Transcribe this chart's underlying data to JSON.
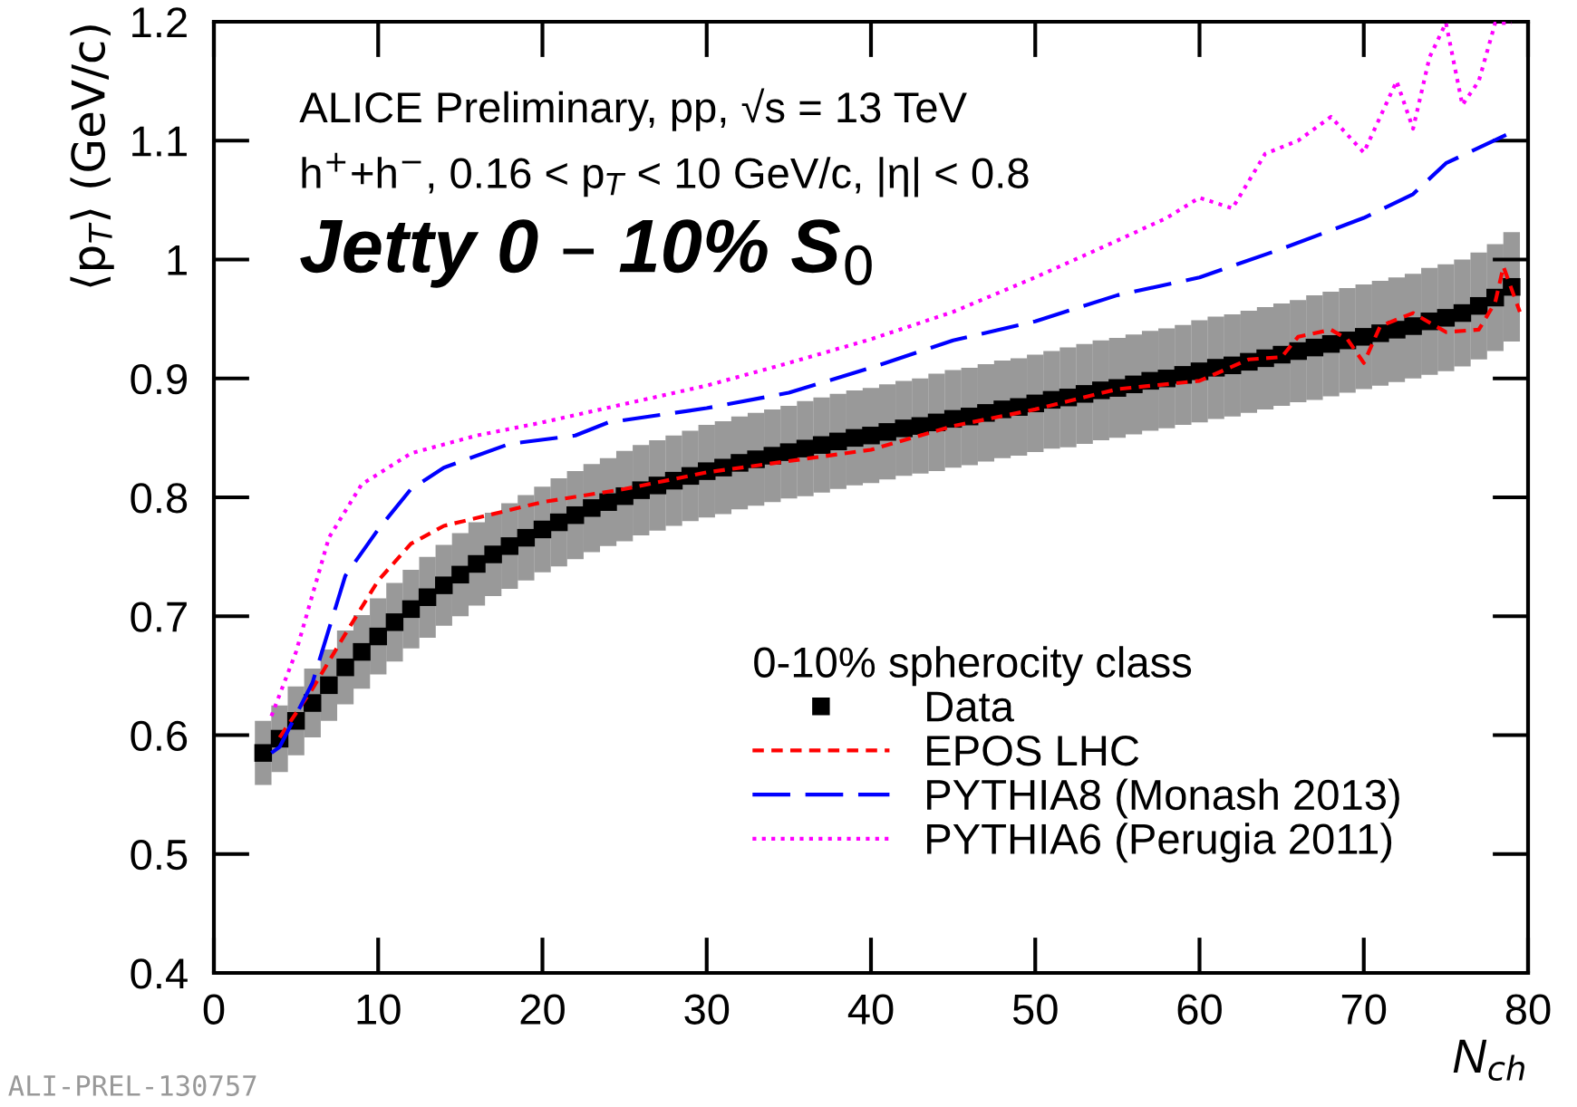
{
  "chart_data": {
    "type": "line",
    "xlabel": "N$_{ch}$",
    "ylabel": "⟨p$_{T}$⟩ (GeV/c)",
    "legend_title": "0-10% spherocity class",
    "annotations": [
      "ALICE Preliminary, pp, √s = 13 TeV",
      "h$^{+}$+h$^{−}$, 0.16 < p$_{T}$ < 10 GeV/c, |η| < 0.8",
      "Jetty 0 – 10% S$_{0}$",
      "ALI-PREL-130757"
    ],
    "xlim": [
      0,
      80
    ],
    "ylim": [
      0.4,
      1.2
    ],
    "xticks": [
      0,
      10,
      20,
      30,
      40,
      50,
      60,
      70,
      80
    ],
    "yticks": [
      0.4,
      0.5,
      0.6,
      0.7,
      0.8,
      0.9,
      1,
      1.1,
      1.2
    ],
    "grid": false,
    "legend": "bottom right",
    "series": [
      {
        "name": "Data",
        "type": "scatter",
        "marker": "square",
        "color": "#000000",
        "x": [
          3,
          4,
          5,
          6,
          7,
          8,
          9,
          10,
          11,
          12,
          13,
          14,
          15,
          16,
          17,
          18,
          19,
          20,
          21,
          22,
          23,
          24,
          25,
          26,
          27,
          28,
          29,
          30,
          31,
          32,
          33,
          34,
          35,
          36,
          37,
          38,
          39,
          40,
          41,
          42,
          43,
          44,
          45,
          46,
          47,
          48,
          49,
          50,
          51,
          52,
          53,
          54,
          55,
          56,
          57,
          58,
          59,
          60,
          61,
          62,
          63,
          64,
          65,
          66,
          67,
          68,
          69,
          70,
          71,
          72,
          73,
          74,
          75,
          76,
          77,
          78,
          79
        ],
        "values": [
          0.585,
          0.597,
          0.612,
          0.627,
          0.642,
          0.657,
          0.67,
          0.683,
          0.695,
          0.706,
          0.716,
          0.726,
          0.735,
          0.744,
          0.752,
          0.759,
          0.766,
          0.773,
          0.779,
          0.785,
          0.791,
          0.796,
          0.801,
          0.806,
          0.81,
          0.814,
          0.818,
          0.822,
          0.825,
          0.829,
          0.832,
          0.835,
          0.838,
          0.841,
          0.844,
          0.847,
          0.85,
          0.852,
          0.855,
          0.858,
          0.86,
          0.863,
          0.866,
          0.868,
          0.871,
          0.874,
          0.876,
          0.879,
          0.882,
          0.884,
          0.887,
          0.89,
          0.892,
          0.895,
          0.898,
          0.9,
          0.903,
          0.906,
          0.909,
          0.911,
          0.914,
          0.917,
          0.92,
          0.923,
          0.926,
          0.929,
          0.932,
          0.935,
          0.938,
          0.941,
          0.944,
          0.948,
          0.951,
          0.955,
          0.961,
          0.968,
          0.977
        ],
        "errors": [
          0.027,
          0.028,
          0.029,
          0.029,
          0.03,
          0.031,
          0.031,
          0.032,
          0.033,
          0.033,
          0.034,
          0.034,
          0.035,
          0.035,
          0.035,
          0.036,
          0.036,
          0.036,
          0.037,
          0.037,
          0.037,
          0.037,
          0.038,
          0.038,
          0.038,
          0.038,
          0.038,
          0.039,
          0.039,
          0.039,
          0.039,
          0.039,
          0.039,
          0.04,
          0.04,
          0.04,
          0.04,
          0.04,
          0.04,
          0.04,
          0.04,
          0.041,
          0.041,
          0.041,
          0.041,
          0.041,
          0.041,
          0.041,
          0.041,
          0.042,
          0.042,
          0.042,
          0.042,
          0.042,
          0.042,
          0.042,
          0.042,
          0.043,
          0.043,
          0.043,
          0.043,
          0.043,
          0.043,
          0.043,
          0.044,
          0.044,
          0.044,
          0.044,
          0.044,
          0.044,
          0.044,
          0.045,
          0.045,
          0.045,
          0.045,
          0.045,
          0.046
        ]
      },
      {
        "name": "EPOS LHC",
        "line_style": "dashed",
        "color": "#ff0000",
        "x": [
          4,
          6,
          8,
          10,
          12,
          14,
          20,
          25,
          30,
          40,
          45,
          50,
          55,
          60,
          63,
          65,
          66,
          68,
          69,
          70,
          71,
          73,
          75,
          77,
          78,
          78.5,
          79.5
        ],
        "values": [
          0.598,
          0.639,
          0.685,
          0.73,
          0.761,
          0.776,
          0.796,
          0.807,
          0.821,
          0.84,
          0.86,
          0.874,
          0.891,
          0.898,
          0.916,
          0.918,
          0.935,
          0.941,
          0.933,
          0.913,
          0.944,
          0.955,
          0.939,
          0.941,
          0.964,
          0.994,
          0.956
        ]
      },
      {
        "name": "PYTHIA8 (Monash 2013)",
        "line_style": "long_dashed",
        "color": "#0000ff",
        "x": [
          3.5,
          4,
          6,
          8,
          10,
          12,
          14,
          18,
          22,
          24,
          30,
          35,
          40,
          45,
          50,
          55,
          60,
          65,
          70,
          73,
          75,
          79
        ],
        "values": [
          0.585,
          0.59,
          0.644,
          0.734,
          0.773,
          0.807,
          0.825,
          0.845,
          0.852,
          0.863,
          0.875,
          0.888,
          0.909,
          0.932,
          0.948,
          0.97,
          0.985,
          1.009,
          1.035,
          1.055,
          1.081,
          1.107
        ]
      },
      {
        "name": "PYTHIA6 (Perugia 2011)",
        "line_style": "dotted",
        "color": "#ff00ff",
        "x": [
          3.5,
          5,
          7,
          9,
          12,
          16,
          20,
          30,
          35,
          40,
          45,
          50,
          55,
          58,
          60,
          62,
          64,
          66,
          68,
          70,
          72,
          73,
          74,
          75,
          76,
          77,
          78,
          79
        ],
        "values": [
          0.616,
          0.67,
          0.766,
          0.811,
          0.837,
          0.852,
          0.863,
          0.894,
          0.913,
          0.933,
          0.956,
          0.985,
          1.016,
          1.035,
          1.052,
          1.043,
          1.089,
          1.1,
          1.12,
          1.09,
          1.15,
          1.11,
          1.17,
          1.199,
          1.13,
          1.15,
          1.199,
          1.199
        ]
      }
    ]
  }
}
